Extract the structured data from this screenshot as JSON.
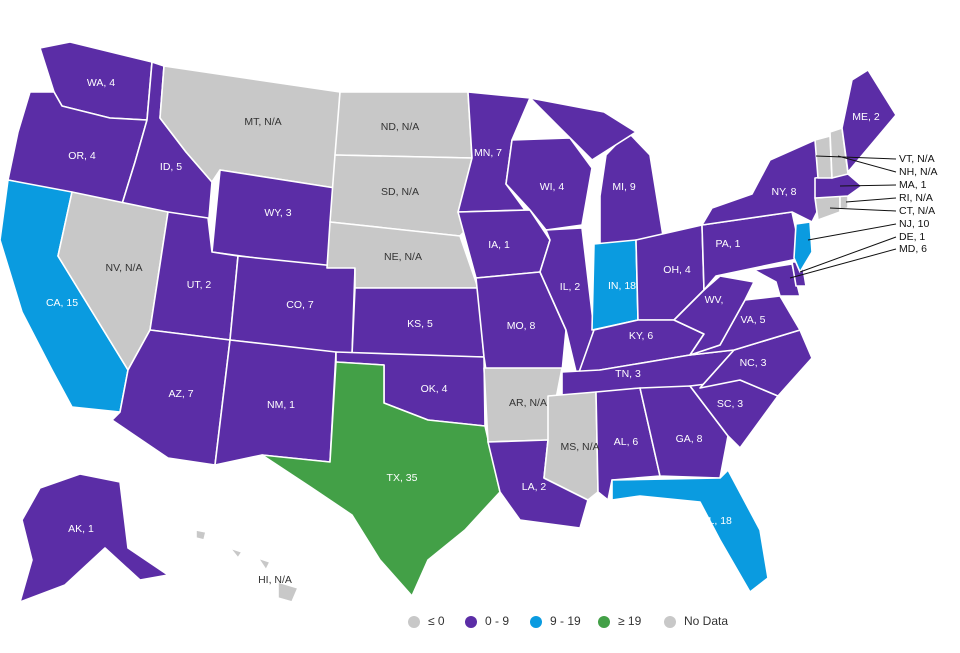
{
  "colors": {
    "le0": "#c8c8c8",
    "b0_9": "#5b2da6",
    "b9_19": "#0a9be0",
    "ge19": "#43a047",
    "no_data": "#c8c8c8"
  },
  "legend": [
    {
      "label": "≤ 0",
      "color_key": "le0"
    },
    {
      "label": "0 - 9",
      "color_key": "b0_9"
    },
    {
      "label": "9 - 19",
      "color_key": "b9_19"
    },
    {
      "label": "≥ 19",
      "color_key": "ge19"
    },
    {
      "label": "No Data",
      "color_key": "no_data"
    }
  ],
  "states": {
    "WA": {
      "label": "WA, 4",
      "value": 4,
      "color_key": "b0_9"
    },
    "OR": {
      "label": "OR, 4",
      "value": 4,
      "color_key": "b0_9"
    },
    "CA": {
      "label": "CA, 15",
      "value": 15,
      "color_key": "b9_19"
    },
    "ID": {
      "label": "ID, 5",
      "value": 5,
      "color_key": "b0_9"
    },
    "NV": {
      "label": "NV, N/A",
      "value": null,
      "color_key": "no_data"
    },
    "MT": {
      "label": "MT, N/A",
      "value": null,
      "color_key": "no_data"
    },
    "WY": {
      "label": "WY, 3",
      "value": 3,
      "color_key": "b0_9"
    },
    "UT": {
      "label": "UT, 2",
      "value": 2,
      "color_key": "b0_9"
    },
    "AZ": {
      "label": "AZ, 7",
      "value": 7,
      "color_key": "b0_9"
    },
    "CO": {
      "label": "CO, 7",
      "value": 7,
      "color_key": "b0_9"
    },
    "NM": {
      "label": "NM, 1",
      "value": 1,
      "color_key": "b0_9"
    },
    "ND": {
      "label": "ND, N/A",
      "value": null,
      "color_key": "no_data"
    },
    "SD": {
      "label": "SD, N/A",
      "value": null,
      "color_key": "no_data"
    },
    "NE": {
      "label": "NE, N/A",
      "value": null,
      "color_key": "no_data"
    },
    "KS": {
      "label": "KS, 5",
      "value": 5,
      "color_key": "b0_9"
    },
    "OK": {
      "label": "OK, 4",
      "value": 4,
      "color_key": "b0_9"
    },
    "TX": {
      "label": "TX, 35",
      "value": 35,
      "color_key": "ge19"
    },
    "MN": {
      "label": "MN, 7",
      "value": 7,
      "color_key": "b0_9"
    },
    "IA": {
      "label": "IA, 1",
      "value": 1,
      "color_key": "b0_9"
    },
    "MO": {
      "label": "MO, 8",
      "value": 8,
      "color_key": "b0_9"
    },
    "AR": {
      "label": "AR, N/A",
      "value": null,
      "color_key": "no_data"
    },
    "LA": {
      "label": "LA, 2",
      "value": 2,
      "color_key": "b0_9"
    },
    "WI": {
      "label": "WI, 4",
      "value": 4,
      "color_key": "b0_9"
    },
    "IL": {
      "label": "IL, 2",
      "value": 2,
      "color_key": "b0_9"
    },
    "MI": {
      "label": "MI, 9",
      "value": 9,
      "color_key": "b0_9"
    },
    "IN": {
      "label": "IN, 18",
      "value": 18,
      "color_key": "b9_19"
    },
    "OH": {
      "label": "OH, 4",
      "value": 4,
      "color_key": "b0_9"
    },
    "KY": {
      "label": "KY, 6",
      "value": 6,
      "color_key": "b0_9"
    },
    "TN": {
      "label": "TN, 3",
      "value": 3,
      "color_key": "b0_9"
    },
    "MS": {
      "label": "MS, N/A",
      "value": null,
      "color_key": "no_data"
    },
    "AL": {
      "label": "AL, 6",
      "value": 6,
      "color_key": "b0_9"
    },
    "GA": {
      "label": "GA, 8",
      "value": 8,
      "color_key": "b0_9"
    },
    "FL": {
      "label": "FL, 18",
      "value": 18,
      "color_key": "b9_19"
    },
    "SC": {
      "label": "SC, 3",
      "value": 3,
      "color_key": "b0_9"
    },
    "NC": {
      "label": "NC, 3",
      "value": 3,
      "color_key": "b0_9"
    },
    "VA": {
      "label": "VA, 5",
      "value": 5,
      "color_key": "b0_9"
    },
    "WV": {
      "label": "WV,",
      "value": null,
      "color_key": "b0_9"
    },
    "PA": {
      "label": "PA, 1",
      "value": 1,
      "color_key": "b0_9"
    },
    "NY": {
      "label": "NY, 8",
      "value": 8,
      "color_key": "b0_9"
    },
    "ME": {
      "label": "ME, 2",
      "value": 2,
      "color_key": "b0_9"
    },
    "VT": {
      "label": "VT, N/A",
      "value": null,
      "color_key": "no_data"
    },
    "NH": {
      "label": "NH, N/A",
      "value": null,
      "color_key": "no_data"
    },
    "MA": {
      "label": "MA, 1",
      "value": 1,
      "color_key": "b0_9"
    },
    "RI": {
      "label": "RI, N/A",
      "value": null,
      "color_key": "no_data"
    },
    "CT": {
      "label": "CT, N/A",
      "value": null,
      "color_key": "no_data"
    },
    "NJ": {
      "label": "NJ, 10",
      "value": 10,
      "color_key": "b9_19"
    },
    "DE": {
      "label": "DE, 1",
      "value": 1,
      "color_key": "b0_9"
    },
    "MD": {
      "label": "MD, 6",
      "value": 6,
      "color_key": "b0_9"
    },
    "AK": {
      "label": "AK, 1",
      "value": 1,
      "color_key": "b0_9"
    },
    "HI": {
      "label": "HI, N/A",
      "value": null,
      "color_key": "no_data"
    }
  }
}
